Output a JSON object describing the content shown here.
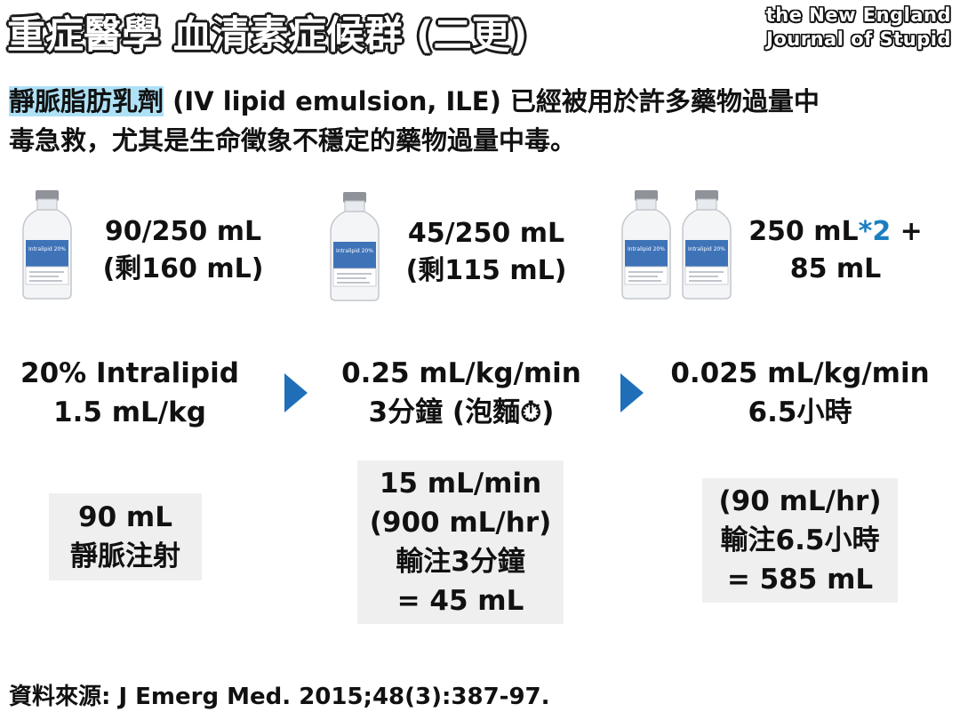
{
  "title": {
    "prefix": "重症醫學 ",
    "highlight": "血清素",
    "suffix": "症候群 (二更)"
  },
  "logo": {
    "line1": "the New England",
    "line2": "Journal of Stupid"
  },
  "intro": {
    "highlighted": "靜脈脂肪乳劑",
    "rest_line1": " (IV lipid emulsion, ILE) 已經被用於許多藥物過量中",
    "line2": "毒急救，尤其是生命徵象不穩定的藥物過量中毒。"
  },
  "bottles": [
    {
      "line1": "90/250 mL",
      "line2": "(剩160 mL)"
    },
    {
      "line1": "45/250 mL",
      "line2": "(剩115 mL)"
    },
    {
      "line1a": "250 mL",
      "line1b": "*2",
      "line1c": " +",
      "line2": "85 mL"
    }
  ],
  "bottle_label": "Intralipid 20%",
  "steps": [
    {
      "line1": "20% Intralipid",
      "line2": "1.5 mL/kg"
    },
    {
      "line1": "0.25 mL/kg/min",
      "line2": "3分鐘 (泡麵⏱)"
    },
    {
      "line1": "0.025 mL/kg/min",
      "line2": "6.5小時"
    }
  ],
  "boxes": [
    {
      "lines": [
        "90 mL",
        "靜脈注射"
      ]
    },
    {
      "lines": [
        "15 mL/min",
        "(900 mL/hr)",
        "輸注3分鐘",
        "= 45 mL"
      ]
    },
    {
      "lines": [
        "(90 mL/hr)",
        "輸注6.5小時",
        "= 585 mL"
      ]
    }
  ],
  "source": "資料來源: J Emerg Med. 2015;48(3):387-97.",
  "colors": {
    "accent_blue": "#49b5e7",
    "arrow": "#1f6fb8",
    "highlight_bg": "#aee1f6",
    "box_bg": "#efefef"
  }
}
